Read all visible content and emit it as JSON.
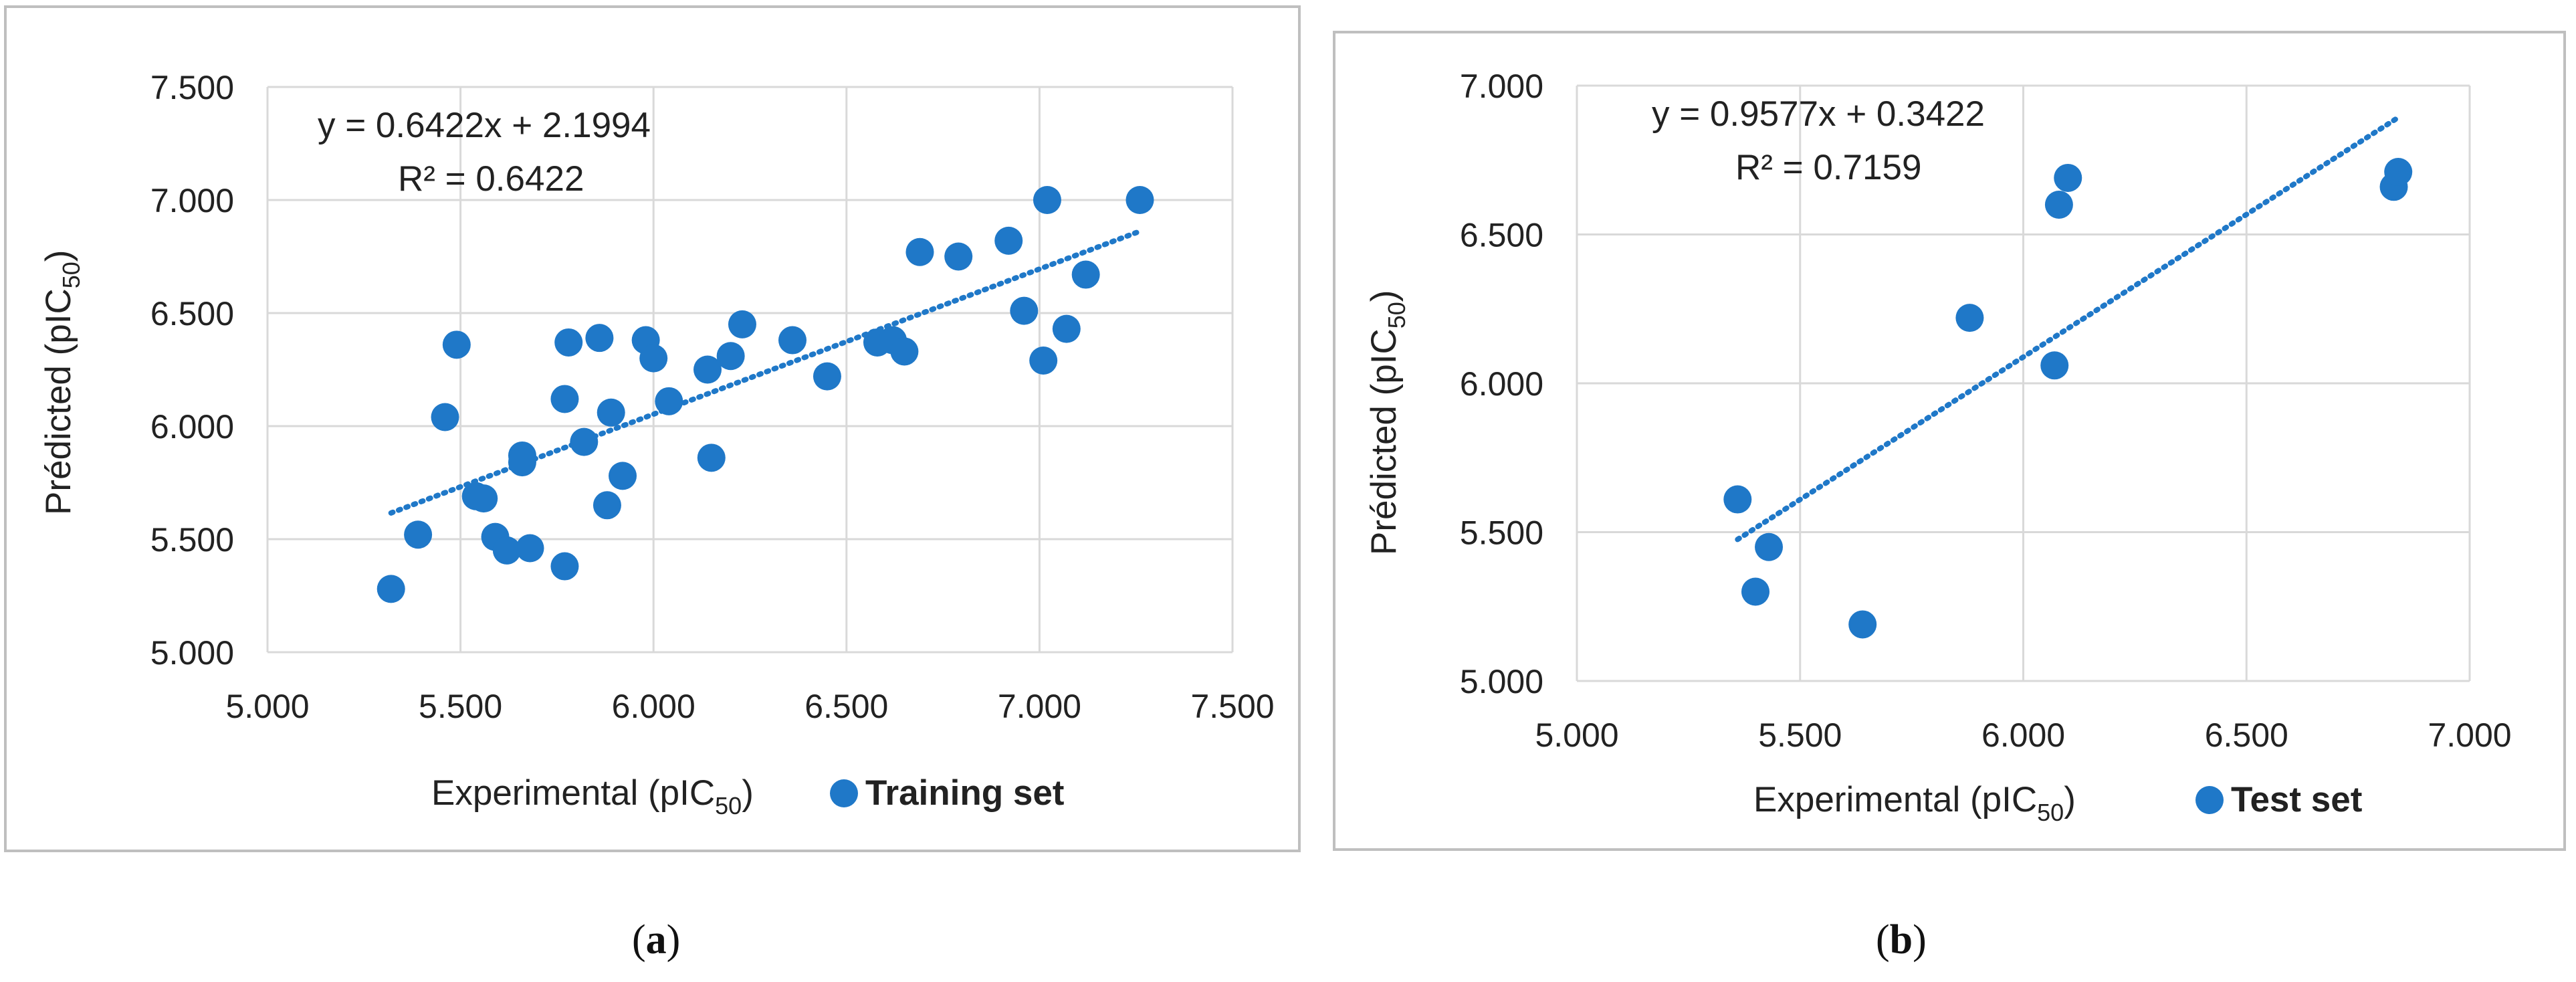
{
  "colors": {
    "marker": "#1f78c8",
    "trend": "#1f78c8",
    "grid": "#d9d9d9",
    "frame": "#bfbfbf"
  },
  "captions": [
    "a",
    "b"
  ],
  "chart_data": [
    {
      "type": "scatter",
      "caption": "a",
      "title": "",
      "xlabel": "Experimental (pIC",
      "xlabel_sub": "50",
      "xlabel_close": ")",
      "ylabel": "Prédicted (pIC",
      "ylabel_sub": "50",
      "ylabel_close": ")",
      "xlim": [
        5.0,
        7.5
      ],
      "ylim": [
        5.0,
        7.5
      ],
      "xticks": [
        "5.000",
        "5.500",
        "6.000",
        "6.500",
        "7.000",
        "7.500"
      ],
      "yticks": [
        "5.000",
        "5.500",
        "6.000",
        "6.500",
        "7.000",
        "7.500"
      ],
      "grid": true,
      "legend": "bottom-right",
      "equation": "y = 0.6422x + 2.1994",
      "r2": "R² = 0.6422",
      "trendline": {
        "slope": 0.6422,
        "intercept": 2.1994,
        "x_range": [
          5.32,
          7.26
        ]
      },
      "series": [
        {
          "name": "Training set",
          "points": [
            [
              5.32,
              5.28
            ],
            [
              5.39,
              5.52
            ],
            [
              5.46,
              6.04
            ],
            [
              5.49,
              6.36
            ],
            [
              5.54,
              5.69
            ],
            [
              5.56,
              5.68
            ],
            [
              5.59,
              5.51
            ],
            [
              5.62,
              5.45
            ],
            [
              5.66,
              5.87
            ],
            [
              5.66,
              5.84
            ],
            [
              5.68,
              5.46
            ],
            [
              5.77,
              5.38
            ],
            [
              5.77,
              6.12
            ],
            [
              5.78,
              6.37
            ],
            [
              5.82,
              5.93
            ],
            [
              5.86,
              6.39
            ],
            [
              5.88,
              5.65
            ],
            [
              5.89,
              6.06
            ],
            [
              5.92,
              5.78
            ],
            [
              5.98,
              6.38
            ],
            [
              6.0,
              6.3
            ],
            [
              6.04,
              6.11
            ],
            [
              6.14,
              6.25
            ],
            [
              6.15,
              5.86
            ],
            [
              6.2,
              6.31
            ],
            [
              6.23,
              6.45
            ],
            [
              6.36,
              6.38
            ],
            [
              6.45,
              6.22
            ],
            [
              6.58,
              6.37
            ],
            [
              6.62,
              6.38
            ],
            [
              6.65,
              6.33
            ],
            [
              6.69,
              6.77
            ],
            [
              6.79,
              6.75
            ],
            [
              6.92,
              6.82
            ],
            [
              6.96,
              6.51
            ],
            [
              7.01,
              6.29
            ],
            [
              7.02,
              7.0
            ],
            [
              7.07,
              6.43
            ],
            [
              7.12,
              6.67
            ],
            [
              7.26,
              7.0
            ]
          ]
        }
      ]
    },
    {
      "type": "scatter",
      "caption": "b",
      "title": "",
      "xlabel": "Experimental (pIC",
      "xlabel_sub": "50",
      "xlabel_close": ")",
      "ylabel": "Prédicted (pIC",
      "ylabel_sub": "50",
      "ylabel_close": ")",
      "xlim": [
        5.0,
        7.0
      ],
      "ylim": [
        5.0,
        7.0
      ],
      "xticks": [
        "5.000",
        "5.500",
        "6.000",
        "6.500",
        "7.000"
      ],
      "yticks": [
        "5.000",
        "5.500",
        "6.000",
        "6.500",
        "7.000"
      ],
      "grid": true,
      "legend": "bottom-right",
      "equation": "y = 0.9577x + 0.3422",
      "r2": "R² = 0.7159",
      "trendline": {
        "slope": 0.9577,
        "intercept": 0.3422,
        "x_range": [
          5.36,
          6.84
        ]
      },
      "series": [
        {
          "name": "Test set",
          "points": [
            [
              5.36,
              5.61
            ],
            [
              5.4,
              5.3
            ],
            [
              5.43,
              5.45
            ],
            [
              5.64,
              5.19
            ],
            [
              5.88,
              6.22
            ],
            [
              6.07,
              6.06
            ],
            [
              6.08,
              6.6
            ],
            [
              6.1,
              6.69
            ],
            [
              6.83,
              6.66
            ],
            [
              6.84,
              6.71
            ]
          ]
        }
      ]
    }
  ]
}
